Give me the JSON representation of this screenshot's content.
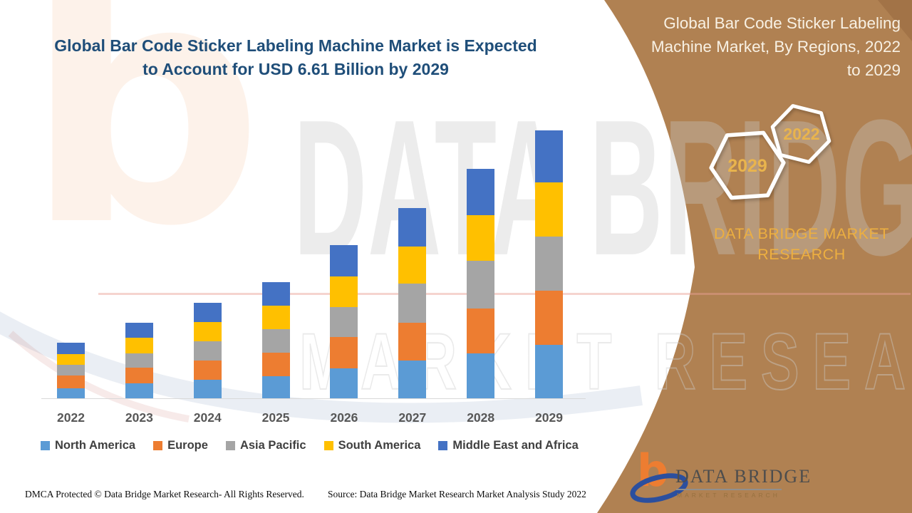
{
  "headline": {
    "line1": "Global Bar Code Sticker Labeling Machine Market is Expected",
    "line2": "to Account for USD 6.61 Billion by 2029"
  },
  "side_panel": {
    "title_line1": "Global Bar Code Sticker Labeling",
    "title_line2": "Machine Market, By Regions, 2022",
    "title_line3": "to 2029",
    "hexagon_back_label": "2029",
    "hexagon_front_label": "2022",
    "brand_line1": "DATA BRIDGE MARKET",
    "brand_line2": "RESEARCH",
    "panel_color": "#B08152",
    "accent_gold": "#EDAF40"
  },
  "watermark": {
    "big_text": "DATA BRIDGE",
    "outline_text": "MARKET RESEARCH",
    "logo_glyph": "b"
  },
  "chart_data": {
    "type": "bar",
    "stacked": true,
    "title": "Global Bar Code Sticker Labeling Machine Market, By Regions, 2022 to 2029",
    "unit": "USD Billion (estimated from bar heights; 2029 total = 6.61)",
    "categories": [
      "2022",
      "2023",
      "2024",
      "2025",
      "2026",
      "2027",
      "2028",
      "2029"
    ],
    "series": [
      {
        "name": "North America",
        "color": "#5B9BD5",
        "values": [
          0.25,
          0.37,
          0.46,
          0.55,
          0.74,
          0.93,
          1.11,
          1.32
        ]
      },
      {
        "name": "Europe",
        "color": "#ED7D31",
        "values": [
          0.32,
          0.39,
          0.47,
          0.58,
          0.77,
          0.93,
          1.11,
          1.34
        ]
      },
      {
        "name": "Asia Pacific",
        "color": "#A5A5A5",
        "values": [
          0.25,
          0.35,
          0.47,
          0.58,
          0.74,
          0.98,
          1.18,
          1.34
        ]
      },
      {
        "name": "South America",
        "color": "#FFC000",
        "values": [
          0.27,
          0.39,
          0.49,
          0.58,
          0.76,
          0.91,
          1.12,
          1.32
        ]
      },
      {
        "name": "Middle East and Africa",
        "color": "#4472C4",
        "values": [
          0.28,
          0.37,
          0.46,
          0.58,
          0.77,
          0.95,
          1.14,
          1.29
        ]
      }
    ],
    "totals": [
      1.37,
      1.87,
      2.35,
      2.87,
      3.78,
      4.7,
      5.66,
      6.61
    ],
    "ylim": [
      0,
      6.61
    ],
    "y_axis_visible": false,
    "grid": false,
    "legend_position": "bottom"
  },
  "footer": {
    "left": "DMCA Protected © Data Bridge Market Research- All Rights Reserved.",
    "right": "Source: Data Bridge Market Research Market Analysis Study 2022"
  },
  "logo": {
    "glyph": "b",
    "name": "DATA BRIDGE",
    "tagline": "MARKET RESEARCH"
  }
}
